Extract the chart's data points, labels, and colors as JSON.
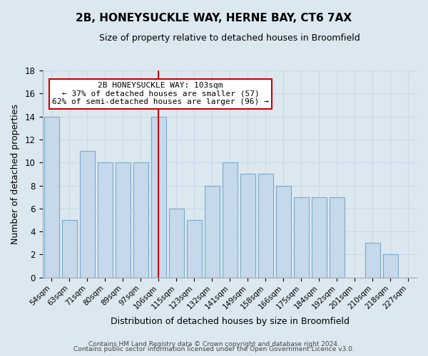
{
  "title": "2B, HONEYSUCKLE WAY, HERNE BAY, CT6 7AX",
  "subtitle": "Size of property relative to detached houses in Broomfield",
  "xlabel": "Distribution of detached houses by size in Broomfield",
  "ylabel": "Number of detached properties",
  "footer_line1": "Contains HM Land Registry data © Crown copyright and database right 2024.",
  "footer_line2": "Contains public sector information licensed under the Open Government Licence v3.0.",
  "bar_labels": [
    "54sqm",
    "63sqm",
    "71sqm",
    "80sqm",
    "89sqm",
    "97sqm",
    "106sqm",
    "115sqm",
    "123sqm",
    "132sqm",
    "141sqm",
    "149sqm",
    "158sqm",
    "166sqm",
    "175sqm",
    "184sqm",
    "192sqm",
    "201sqm",
    "210sqm",
    "218sqm",
    "227sqm"
  ],
  "bar_values": [
    14,
    5,
    11,
    10,
    10,
    10,
    14,
    6,
    5,
    8,
    10,
    9,
    9,
    8,
    7,
    7,
    7,
    0,
    3,
    2,
    0
  ],
  "highlight_bar_index": 6,
  "bar_color": "#c5d9ea",
  "bar_edge_color": "#7aaaca",
  "highlight_bar_color": "#cc0000",
  "ylim": [
    0,
    18
  ],
  "yticks": [
    0,
    2,
    4,
    6,
    8,
    10,
    12,
    14,
    16,
    18
  ],
  "annotation_title": "2B HONEYSUCKLE WAY: 103sqm",
  "annotation_line1": "← 37% of detached houses are smaller (57)",
  "annotation_line2": "62% of semi-detached houses are larger (96) →",
  "annotation_box_color": "#ffffff",
  "annotation_box_edge_color": "#cc0000",
  "grid_color": "#c8d8e8",
  "axes_bg_color": "#dce8f0",
  "fig_bg_color": "#dce8f0"
}
